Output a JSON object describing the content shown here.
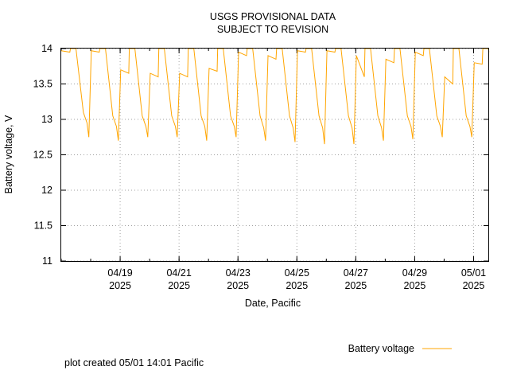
{
  "chart_data": {
    "type": "line",
    "title": "USGS PROVISIONAL DATA",
    "subtitle": "SUBJECT TO REVISION",
    "xlabel": "Date, Pacific",
    "ylabel": "Battery voltage, V",
    "ylim": [
      11,
      14
    ],
    "yticks": [
      "11",
      "11.5",
      "12",
      "12.5",
      "13",
      "13.5",
      "14"
    ],
    "xlim": [
      "2025-04-17T00:00",
      "2025-05-01T12:00"
    ],
    "xticks": [
      {
        "date": "2025-04-19",
        "label": "04/19",
        "year": "2025"
      },
      {
        "date": "2025-04-21",
        "label": "04/21",
        "year": "2025"
      },
      {
        "date": "2025-04-23",
        "label": "04/23",
        "year": "2025"
      },
      {
        "date": "2025-04-25",
        "label": "04/25",
        "year": "2025"
      },
      {
        "date": "2025-04-27",
        "label": "04/27",
        "year": "2025"
      },
      {
        "date": "2025-04-29",
        "label": "04/29",
        "year": "2025"
      },
      {
        "date": "2025-05-01",
        "label": "05/01",
        "year": "2025"
      }
    ],
    "grid": true,
    "legend_position": "bottom-right",
    "series": [
      {
        "name": "Battery voltage",
        "color": "#FFA500",
        "x": [
          "2025-04-17T00:00",
          "2025-04-17T07:00",
          "2025-04-17T07:30",
          "2025-04-17T12:00",
          "2025-04-17T18:00",
          "2025-04-17T21:00",
          "2025-04-17T22:30",
          "2025-04-18T00:30",
          "2025-04-18T07:00",
          "2025-04-18T07:30",
          "2025-04-18T12:00",
          "2025-04-18T18:00",
          "2025-04-18T21:00",
          "2025-04-18T22:30",
          "2025-04-19T00:30",
          "2025-04-19T07:00",
          "2025-04-19T07:30",
          "2025-04-19T12:00",
          "2025-04-19T18:00",
          "2025-04-19T21:00",
          "2025-04-19T22:30",
          "2025-04-20T00:30",
          "2025-04-20T07:00",
          "2025-04-20T07:30",
          "2025-04-20T12:00",
          "2025-04-20T18:00",
          "2025-04-20T21:00",
          "2025-04-20T22:30",
          "2025-04-21T00:30",
          "2025-04-21T07:00",
          "2025-04-21T07:30",
          "2025-04-21T12:00",
          "2025-04-21T18:00",
          "2025-04-21T21:00",
          "2025-04-21T22:30",
          "2025-04-22T00:30",
          "2025-04-22T07:00",
          "2025-04-22T07:30",
          "2025-04-22T12:00",
          "2025-04-22T18:00",
          "2025-04-22T21:00",
          "2025-04-22T22:30",
          "2025-04-23T00:30",
          "2025-04-23T07:00",
          "2025-04-23T07:30",
          "2025-04-23T12:00",
          "2025-04-23T18:00",
          "2025-04-23T21:00",
          "2025-04-23T22:30",
          "2025-04-24T00:30",
          "2025-04-24T07:00",
          "2025-04-24T07:30",
          "2025-04-24T12:00",
          "2025-04-24T18:00",
          "2025-04-24T21:00",
          "2025-04-24T22:30",
          "2025-04-25T00:30",
          "2025-04-25T07:00",
          "2025-04-25T07:30",
          "2025-04-25T12:00",
          "2025-04-25T18:00",
          "2025-04-25T21:00",
          "2025-04-25T22:30",
          "2025-04-26T00:30",
          "2025-04-26T07:00",
          "2025-04-26T07:30",
          "2025-04-26T12:00",
          "2025-04-26T18:00",
          "2025-04-26T21:00",
          "2025-04-26T22:30",
          "2025-04-27T00:30",
          "2025-04-27T07:00",
          "2025-04-27T07:30",
          "2025-04-27T12:00",
          "2025-04-27T18:00",
          "2025-04-27T21:00",
          "2025-04-27T22:30",
          "2025-04-28T00:30",
          "2025-04-28T07:00",
          "2025-04-28T07:30",
          "2025-04-28T12:00",
          "2025-04-28T18:00",
          "2025-04-28T21:00",
          "2025-04-28T22:30",
          "2025-04-29T00:30",
          "2025-04-29T07:00",
          "2025-04-29T07:30",
          "2025-04-29T12:00",
          "2025-04-29T18:00",
          "2025-04-29T21:00",
          "2025-04-29T22:30",
          "2025-04-30T00:30",
          "2025-04-30T07:00",
          "2025-04-30T07:30",
          "2025-04-30T12:00",
          "2025-04-30T18:00",
          "2025-04-30T21:00",
          "2025-04-30T22:30",
          "2025-05-01T00:30",
          "2025-05-01T07:00",
          "2025-05-01T07:30",
          "2025-05-01T12:00",
          "2025-05-01T12:30"
        ],
        "y": [
          13.97,
          13.95,
          14.0,
          14.0,
          13.1,
          12.95,
          12.75,
          13.97,
          13.95,
          14.0,
          14.0,
          13.05,
          12.9,
          12.7,
          13.7,
          13.65,
          14.0,
          14.0,
          13.05,
          12.9,
          12.75,
          13.65,
          13.6,
          14.0,
          14.0,
          13.05,
          12.9,
          12.75,
          13.65,
          13.6,
          14.0,
          14.0,
          13.05,
          12.9,
          12.7,
          13.72,
          13.68,
          14.0,
          14.0,
          13.05,
          12.9,
          12.75,
          13.95,
          13.9,
          14.0,
          14.0,
          13.05,
          12.88,
          12.7,
          13.9,
          13.85,
          14.0,
          14.0,
          13.05,
          12.88,
          12.68,
          13.97,
          13.95,
          14.0,
          14.0,
          13.05,
          12.88,
          12.65,
          13.97,
          13.95,
          14.0,
          14.0,
          13.05,
          12.88,
          12.65,
          13.9,
          13.6,
          14.0,
          14.0,
          13.05,
          12.88,
          12.7,
          13.85,
          13.8,
          14.0,
          14.0,
          13.05,
          12.9,
          12.72,
          13.95,
          13.9,
          14.0,
          14.0,
          13.05,
          12.9,
          12.75,
          13.6,
          13.5,
          14.0,
          14.0,
          13.05,
          12.9,
          12.75,
          13.8,
          13.78,
          14.0,
          14.0,
          13.95
        ]
      }
    ]
  },
  "footer": {
    "created": "plot created 05/01 14:01 Pacific"
  }
}
